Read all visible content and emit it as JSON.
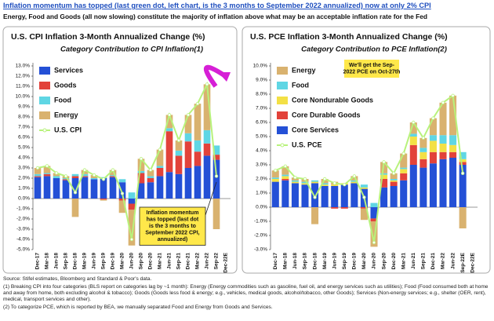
{
  "header": {
    "title": "Inflation momentum has topped (last green dot, left chart, is the 3 months to September 2022 annualized) now at only 2% CPI",
    "subtitle": "Energy, Food and Goods (all now slowing) constitute the majority of inflation above what may be an acceptable inflation rate for the Fed"
  },
  "chart_data": [
    {
      "type": "bar",
      "stacked": true,
      "title": "U.S. CPI Inflation 3-Month Annualized Change (%)",
      "subtitle": "Category Contribution to CPI Inflation(1)",
      "categories": [
        "Dec-17",
        "Mar-18",
        "Jun-18",
        "Sep-18",
        "Dec-18",
        "Mar-19",
        "Jun-19",
        "Sep-19",
        "Dec-19",
        "Mar-20",
        "Jun-20",
        "Sep-20",
        "Dec-20",
        "Mar-21",
        "Jun-21",
        "Sep-21",
        "Dec-21",
        "Mar-22",
        "Jun-22",
        "Sep-22",
        "Dec-22E"
      ],
      "series": [
        {
          "name": "Services",
          "color": "#2450d6",
          "values": [
            2.1,
            2.2,
            2.0,
            1.8,
            2.0,
            2.1,
            1.9,
            2.0,
            2.1,
            1.6,
            -0.5,
            1.5,
            1.6,
            2.2,
            2.6,
            2.4,
            3.0,
            3.2,
            4.2,
            3.8,
            null
          ]
        },
        {
          "name": "Goods",
          "color": "#e2423a",
          "values": [
            0.1,
            0.2,
            0.0,
            0.1,
            0.2,
            0.1,
            0.0,
            -0.1,
            0.1,
            -0.2,
            -0.6,
            1.0,
            0.4,
            0.8,
            4.0,
            1.8,
            2.6,
            1.4,
            1.2,
            0.5,
            null
          ]
        },
        {
          "name": "Food",
          "color": "#5fd6e4",
          "values": [
            0.2,
            0.1,
            0.2,
            0.1,
            0.2,
            0.2,
            0.1,
            0.1,
            0.1,
            0.3,
            0.6,
            0.2,
            0.2,
            0.2,
            0.3,
            0.5,
            0.8,
            1.1,
            1.3,
            0.9,
            null
          ]
        },
        {
          "name": "Energy",
          "color": "#d9b26f",
          "values": [
            0.6,
            0.7,
            0.3,
            0.2,
            -1.8,
            0.4,
            0.3,
            -0.1,
            0.5,
            -1.2,
            -3.5,
            1.2,
            0.6,
            1.6,
            1.3,
            1.0,
            1.8,
            3.6,
            4.5,
            -3.0,
            null
          ]
        }
      ],
      "line": {
        "name": "U.S. CPI",
        "color": "#b8f27c",
        "values": [
          3.0,
          3.2,
          2.5,
          2.2,
          0.6,
          2.8,
          2.3,
          1.9,
          2.8,
          0.5,
          -4.0,
          3.9,
          2.8,
          4.8,
          8.2,
          5.7,
          8.2,
          9.3,
          11.2,
          2.2,
          null
        ]
      },
      "ylim": [
        -5,
        13
      ],
      "yticks": [
        {
          "value": -5,
          "label": "-5.0%"
        },
        {
          "value": -4,
          "label": "-4.0%"
        },
        {
          "value": -3,
          "label": "-3.0%"
        },
        {
          "value": -2,
          "label": "-2.0%"
        },
        {
          "value": -1,
          "label": "-1.0%"
        },
        {
          "value": 0,
          "label": "0.0%"
        },
        {
          "value": 1,
          "label": "1.0%"
        },
        {
          "value": 2,
          "label": "2.0%"
        },
        {
          "value": 3,
          "label": "3.0%"
        },
        {
          "value": 4,
          "label": "4.0%"
        },
        {
          "value": 5,
          "label": "5.0%"
        },
        {
          "value": 6,
          "label": "6.0%"
        },
        {
          "value": 7,
          "label": "7.0%"
        },
        {
          "value": 8,
          "label": "8.0%"
        },
        {
          "value": 9,
          "label": "9.0%"
        },
        {
          "value": 10,
          "label": "10.0%"
        },
        {
          "value": 11,
          "label": "11.0%"
        },
        {
          "value": 12,
          "label": "12.0%"
        },
        {
          "value": 13,
          "label": "13.0%"
        }
      ],
      "grid": false,
      "annotation": [
        "Inflation momentum",
        "has topped (last dot",
        "is the 3 months to",
        "September 2022 CPI,",
        "annualized)"
      ]
    },
    {
      "type": "bar",
      "stacked": true,
      "legend_reversed": true,
      "title": "U.S. PCE Inflation 3-Month Annualized Change (%)",
      "subtitle": "Category Contribution to PCE Inflation(2)",
      "categories": [
        "Dec-17",
        "Mar-18",
        "Jun-18",
        "Sep-18",
        "Dec-18",
        "Mar-19",
        "Jun-19",
        "Sep-19",
        "Dec-19",
        "Mar-20",
        "Jun-20",
        "Sep-20",
        "Dec-20",
        "Mar-21",
        "Jun-21",
        "Sep-21",
        "Dec-21",
        "Mar-22",
        "Jun-22",
        "Sep-22E",
        "Dec-22E"
      ],
      "series": [
        {
          "name": "Core Services",
          "color": "#2450d6",
          "values": [
            1.8,
            1.9,
            1.7,
            1.6,
            1.7,
            1.5,
            1.5,
            1.6,
            1.7,
            1.3,
            -0.8,
            1.4,
            1.5,
            1.9,
            3.0,
            2.8,
            3.1,
            3.4,
            3.5,
            3.0,
            null
          ]
        },
        {
          "name": "Core Durable Goods",
          "color": "#e2423a",
          "values": [
            0.0,
            0.1,
            0.0,
            0.0,
            0.0,
            0.0,
            -0.1,
            -0.1,
            0.0,
            -0.1,
            -0.2,
            0.6,
            0.3,
            0.5,
            1.4,
            0.6,
            0.8,
            0.5,
            0.4,
            0.2,
            null
          ]
        },
        {
          "name": "Core Nondurable Goods",
          "color": "#f3e045",
          "values": [
            0.2,
            0.2,
            0.1,
            0.1,
            0.1,
            0.1,
            0.1,
            0.1,
            0.1,
            0.1,
            0.0,
            0.3,
            0.1,
            0.3,
            0.6,
            0.5,
            0.8,
            0.6,
            0.5,
            0.2,
            null
          ]
        },
        {
          "name": "Food",
          "color": "#5fd6e4",
          "values": [
            0.1,
            0.1,
            0.1,
            0.1,
            0.1,
            0.1,
            0.0,
            0.0,
            0.1,
            0.2,
            0.3,
            0.1,
            0.1,
            0.1,
            0.2,
            0.3,
            0.4,
            0.6,
            0.7,
            0.5,
            null
          ]
        },
        {
          "name": "Energy",
          "color": "#d9b26f",
          "values": [
            0.5,
            0.6,
            0.2,
            0.2,
            -1.2,
            0.3,
            0.2,
            0.0,
            0.3,
            -0.8,
            -1.8,
            0.8,
            0.4,
            1.0,
            0.8,
            0.7,
            1.2,
            2.3,
            2.8,
            -1.5,
            null
          ]
        }
      ],
      "line": {
        "name": "U.S. PCE",
        "color": "#b8f27c",
        "values": [
          2.6,
          2.9,
          2.1,
          2.0,
          0.7,
          2.0,
          1.7,
          1.6,
          2.2,
          0.7,
          -2.5,
          3.2,
          2.4,
          3.8,
          6.0,
          4.9,
          6.3,
          7.4,
          7.9,
          2.4,
          null
        ]
      },
      "ylim": [
        -3,
        10
      ],
      "yticks": [
        {
          "value": -3,
          "label": "-3.0%"
        },
        {
          "value": -2,
          "label": "-2.0%"
        },
        {
          "value": -1,
          "label": "-1.0%"
        },
        {
          "value": 0,
          "label": "0.0%"
        },
        {
          "value": 1,
          "label": "1.0%"
        },
        {
          "value": 2,
          "label": "2.0%"
        },
        {
          "value": 3,
          "label": "3.0%"
        },
        {
          "value": 4,
          "label": "4.0%"
        },
        {
          "value": 5,
          "label": "5.0%"
        },
        {
          "value": 6,
          "label": "6.0%"
        },
        {
          "value": 7,
          "label": "7.0%"
        },
        {
          "value": 8,
          "label": "8.0%"
        },
        {
          "value": 9,
          "label": "9.0%"
        },
        {
          "value": 10,
          "label": "10.0%"
        }
      ],
      "grid": false,
      "annotation": [
        "We'll get the Sep-",
        "2022 PCE on Oct-27th"
      ]
    }
  ],
  "notes": {
    "source": "Source: Stifel estimates, Bloomberg and Standard & Poor's data.",
    "note1": "(1)  Breaking CPI into four categories (BLS report on categories lag by ~1 month): Energy (Energy commodities such as gasoline, fuel oil, and energy services such as utilities); Food (Food consumed both at home and away from home, both excluding alcohol & tobacco); Goods (Goods less food & energy; e.g., vehicles, medical goods, alcohol/tobacco, other Goods); Services (Non-energy services; e.g., shelter (OER, rent), medical, transport services and other).",
    "note2": "(2)  To categorize PCE, which is reported by BEA, we manually separated Food and Energy from Goods and Services."
  }
}
